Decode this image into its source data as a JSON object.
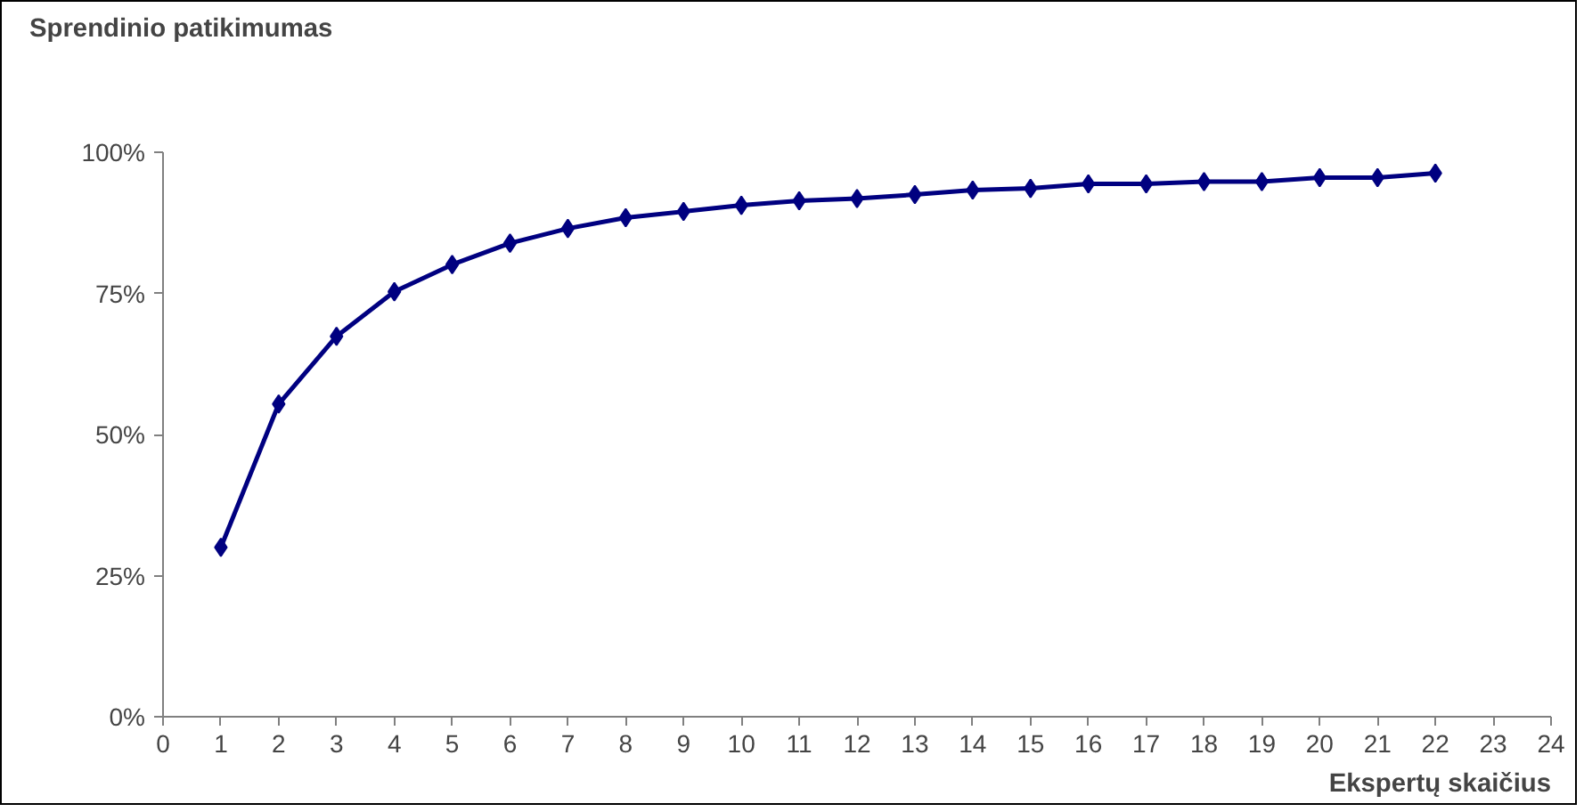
{
  "chart_data": {
    "type": "line",
    "title": "Sprendinio patikimumas",
    "xlabel": "Ekspertų skaičius",
    "x": [
      1,
      2,
      3,
      4,
      5,
      6,
      7,
      8,
      9,
      10,
      11,
      12,
      13,
      14,
      15,
      16,
      17,
      18,
      19,
      20,
      21,
      22
    ],
    "series": [
      {
        "color": "#000080",
        "values": [
          30,
          55.4,
          67.4,
          75.3,
          80.1,
          83.9,
          86.5,
          88.4,
          89.5,
          90.6,
          91.4,
          91.8,
          92.5,
          93.3,
          93.6,
          94.4,
          94.4,
          94.8,
          94.8,
          95.5,
          95.5,
          96.3
        ]
      }
    ],
    "xlim": [
      0,
      24
    ],
    "xticks": [
      0,
      1,
      2,
      3,
      4,
      5,
      6,
      7,
      8,
      9,
      10,
      11,
      12,
      13,
      14,
      15,
      16,
      17,
      18,
      19,
      20,
      21,
      22,
      23,
      24
    ],
    "ylim": [
      0,
      100
    ],
    "yticks": [
      {
        "value": 0,
        "label": "0%"
      },
      {
        "value": 25,
        "label": "25%"
      },
      {
        "value": 50,
        "label": "50%"
      },
      {
        "value": 75,
        "label": "75%"
      },
      {
        "value": 100,
        "label": "100%"
      }
    ],
    "marker": "diamond",
    "line_style": "solid",
    "grid": false
  }
}
